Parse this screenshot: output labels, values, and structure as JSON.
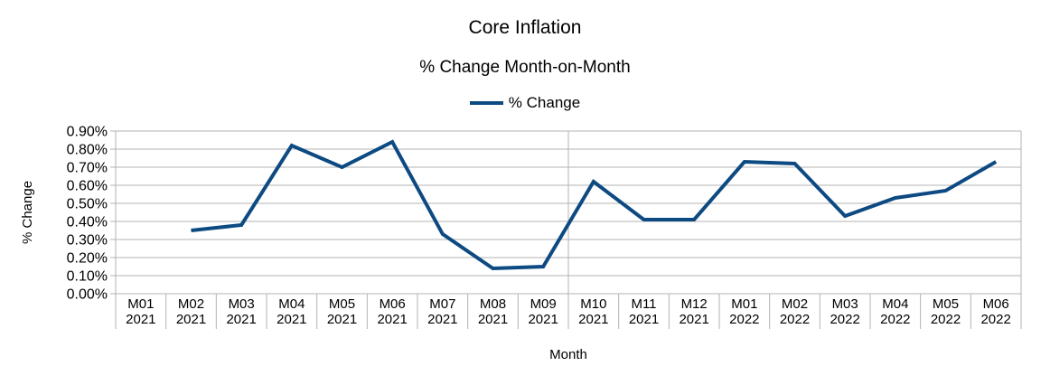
{
  "chart": {
    "title": "Core Inflation",
    "subtitle": "% Change Month-on-Month",
    "legend_label": "% Change",
    "x_axis_title": "Month",
    "y_axis_title": "% Change"
  },
  "chart_data": {
    "type": "line",
    "title": "Core Inflation",
    "subtitle": "% Change Month-on-Month",
    "xlabel": "Month",
    "ylabel": "% Change",
    "units": "percent",
    "legend_position": "top",
    "grid": true,
    "categories": [
      "M01 2021",
      "M02 2021",
      "M03 2021",
      "M04 2021",
      "M05 2021",
      "M06 2021",
      "M07 2021",
      "M08 2021",
      "M09 2021",
      "M10 2021",
      "M11 2021",
      "M12 2021",
      "M01 2022",
      "M02 2022",
      "M03 2022",
      "M04 2022",
      "M05 2022",
      "M06 2022"
    ],
    "series": [
      {
        "name": "% Change",
        "color": "#0d4a82",
        "values": [
          null,
          0.35,
          0.38,
          0.82,
          0.7,
          0.84,
          0.33,
          0.14,
          0.15,
          0.62,
          0.41,
          0.41,
          0.73,
          0.72,
          0.43,
          0.53,
          0.57,
          0.73
        ]
      }
    ],
    "ylim": [
      0,
      0.9
    ],
    "ytick_step": 0.1,
    "y_tick_labels": [
      "0.00%",
      "0.10%",
      "0.20%",
      "0.30%",
      "0.40%",
      "0.50%",
      "0.60%",
      "0.70%",
      "0.80%",
      "0.90%"
    ],
    "colors": {
      "gridline": "#b3b3b3",
      "axis": "#b3b3b3",
      "text": "#000000",
      "background": "#ffffff"
    }
  }
}
